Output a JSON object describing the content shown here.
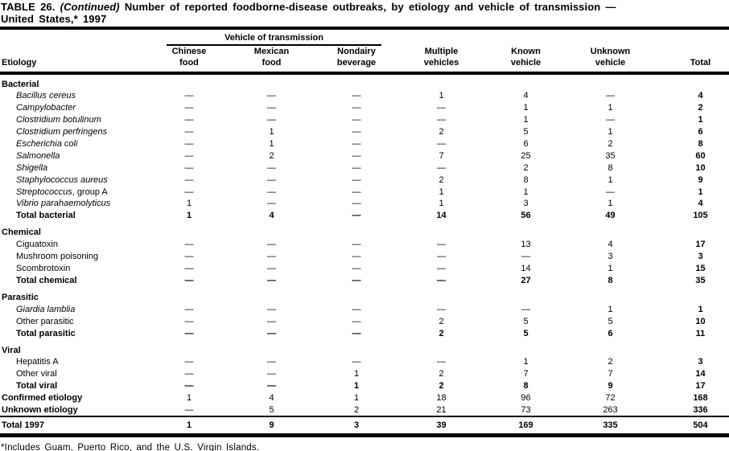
{
  "title": {
    "label": "TABLE 26.",
    "continued": "(Continued)",
    "rest": "Number of reported foodborne-disease outbreaks, by etiology and vehicle of transmission —",
    "line2": "United States,* 1997"
  },
  "header": {
    "etiology_label": "Etiology",
    "spanner_label": "Vehicle of transmission",
    "columns": [
      {
        "line1": "Chinese",
        "line2": "food"
      },
      {
        "line1": "Mexican",
        "line2": "food"
      },
      {
        "line1": "Nondairy",
        "line2": "beverage"
      },
      {
        "line1": "Multiple",
        "line2": "vehicles"
      },
      {
        "line1": "Known",
        "line2": "vehicle"
      },
      {
        "line1": "Unknown",
        "line2": "vehicle"
      },
      {
        "line1": "",
        "line2": "Total"
      }
    ]
  },
  "sections": [
    {
      "name": "Bacterial",
      "rows": [
        {
          "label": "Bacillus cereus",
          "italic": true,
          "values": [
            "—",
            "—",
            "—",
            "1",
            "4",
            "—",
            "4"
          ]
        },
        {
          "label": "Campylobacter",
          "italic": true,
          "values": [
            "—",
            "—",
            "—",
            "—",
            "1",
            "1",
            "2"
          ]
        },
        {
          "label": "Clostridium botulinum",
          "italic": true,
          "values": [
            "—",
            "—",
            "—",
            "—",
            "1",
            "—",
            "1"
          ]
        },
        {
          "label": "Clostridium perfringens",
          "italic": true,
          "values": [
            "—",
            "1",
            "—",
            "2",
            "5",
            "1",
            "6"
          ]
        },
        {
          "label": "Escherichia coli",
          "italic": true,
          "values": [
            "—",
            "1",
            "—",
            "—",
            "6",
            "2",
            "8"
          ]
        },
        {
          "label": "Salmonella",
          "italic": true,
          "values": [
            "—",
            "2",
            "—",
            "7",
            "25",
            "35",
            "60"
          ]
        },
        {
          "label": "Shigella",
          "italic": true,
          "values": [
            "—",
            "—",
            "—",
            "—",
            "2",
            "8",
            "10"
          ]
        },
        {
          "label": "Staphylococcus aureus",
          "italic": true,
          "values": [
            "—",
            "—",
            "—",
            "2",
            "8",
            "1",
            "9"
          ]
        },
        {
          "label": "Streptococcus",
          "label_suffix": ", group A",
          "italic": true,
          "values": [
            "—",
            "—",
            "—",
            "1",
            "1",
            "—",
            "1"
          ]
        },
        {
          "label": "Vibrio parahaemolyticus",
          "italic": true,
          "values": [
            "1",
            "—",
            "—",
            "1",
            "3",
            "1",
            "4"
          ]
        },
        {
          "label": "Total bacterial",
          "bold": true,
          "values": [
            "1",
            "4",
            "—",
            "14",
            "56",
            "49",
            "105"
          ]
        }
      ]
    },
    {
      "name": "Chemical",
      "rows": [
        {
          "label": "Ciguatoxin",
          "values": [
            "—",
            "—",
            "—",
            "—",
            "13",
            "4",
            "17"
          ]
        },
        {
          "label": "Mushroom poisoning",
          "values": [
            "—",
            "—",
            "—",
            "—",
            "—",
            "3",
            "3"
          ]
        },
        {
          "label": "Scombrotoxin",
          "values": [
            "—",
            "—",
            "—",
            "—",
            "14",
            "1",
            "15"
          ]
        },
        {
          "label": "Total chemical",
          "bold": true,
          "values": [
            "—",
            "—",
            "—",
            "—",
            "27",
            "8",
            "35"
          ]
        }
      ]
    },
    {
      "name": "Parasitic",
      "rows": [
        {
          "label": "Giardia lamblia",
          "italic": true,
          "values": [
            "—",
            "—",
            "—",
            "—",
            "—",
            "1",
            "1"
          ]
        },
        {
          "label": "Other parasitic",
          "values": [
            "—",
            "—",
            "—",
            "2",
            "5",
            "5",
            "10"
          ]
        },
        {
          "label": "Total parasitic",
          "bold": true,
          "values": [
            "—",
            "—",
            "—",
            "2",
            "5",
            "6",
            "11"
          ]
        }
      ]
    },
    {
      "name": "Viral",
      "rows": [
        {
          "label": "Hepatitis A",
          "values": [
            "—",
            "—",
            "—",
            "—",
            "1",
            "2",
            "3"
          ]
        },
        {
          "label": "Other viral",
          "values": [
            "—",
            "—",
            "1",
            "2",
            "7",
            "7",
            "14"
          ]
        },
        {
          "label": "Total viral",
          "bold": true,
          "values": [
            "—",
            "—",
            "1",
            "2",
            "8",
            "9",
            "17"
          ]
        }
      ]
    }
  ],
  "summary_rows": [
    {
      "label": "Confirmed etiology",
      "bold_label": true,
      "values": [
        "1",
        "4",
        "1",
        "18",
        "96",
        "72",
        "168"
      ]
    },
    {
      "label": "Unknown etiology",
      "bold_label": true,
      "values": [
        "—",
        "5",
        "2",
        "21",
        "73",
        "263",
        "336"
      ]
    }
  ],
  "total_row": {
    "label": "Total 1997",
    "bold": true,
    "values": [
      "1",
      "9",
      "3",
      "39",
      "169",
      "335",
      "504"
    ]
  },
  "footnote": "*Includes Guam, Puerto Rico, and the U.S. Virgin Islands.",
  "colors": {
    "text": "#000000",
    "background": "#ffffff",
    "rule": "#000000"
  }
}
